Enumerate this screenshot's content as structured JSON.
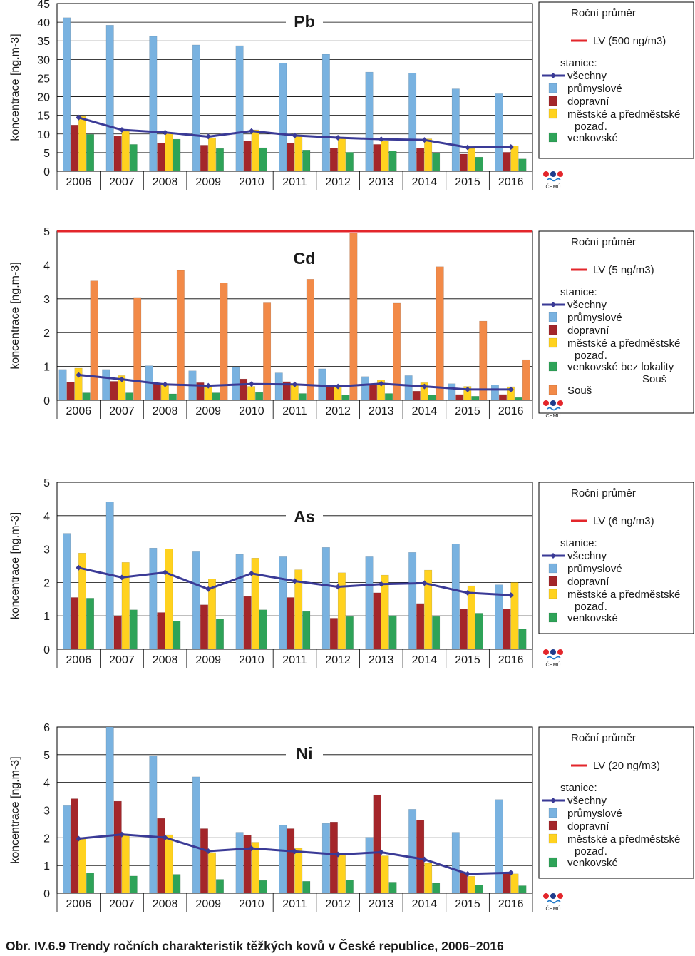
{
  "caption": "Obr. IV.6.9  Trendy ročních charakteristik těžkých kovů v České republice, 2006–2016",
  "logo_text": "ČHMÚ",
  "colors": {
    "all": "#3a3a96",
    "industrial": "#79b2e0",
    "traffic": "#a4262a",
    "urban": "#ffd21f",
    "rural": "#2ea358",
    "sous": "#f28a48",
    "limit": "#e3262b",
    "grid": "#000000"
  },
  "chart_data": [
    {
      "type": "bar",
      "title": "Pb",
      "ylabel": "koncentrace [ng.m-3]",
      "ylim": [
        0,
        45
      ],
      "yticks": [
        "0",
        "5",
        "10",
        "15",
        "20",
        "25",
        "30",
        "35",
        "40",
        "45"
      ],
      "categories": [
        "2006",
        "2007",
        "2008",
        "2009",
        "2010",
        "2011",
        "2012",
        "2013",
        "2014",
        "2015",
        "2016"
      ],
      "legend": {
        "title": "Roční průměr",
        "limit_label": "LV (500 ng/m3)",
        "stations_header": "stanice:",
        "entries": [
          "všechny",
          "průmyslové",
          "dopravní",
          "městské a předměstské",
          "pozaď.",
          "venkovské"
        ]
      },
      "limit_value": 500,
      "series": [
        {
          "name": "průmyslové",
          "key": "industrial",
          "values": [
            41.2,
            39.2,
            36.2,
            33.9,
            33.7,
            29.0,
            31.4,
            26.6,
            26.3,
            22.1,
            20.8
          ]
        },
        {
          "name": "dopravní",
          "key": "traffic",
          "values": [
            12.4,
            9.5,
            7.5,
            7.0,
            8.1,
            7.6,
            6.2,
            7.2,
            6.2,
            4.6,
            5.1
          ]
        },
        {
          "name": "městské a předměstské pozaď.",
          "key": "urban",
          "values": [
            14.7,
            10.7,
            10.2,
            9.0,
            11.1,
            9.3,
            9.0,
            8.1,
            8.7,
            6.1,
            6.8
          ]
        },
        {
          "name": "venkovské",
          "key": "rural",
          "values": [
            9.9,
            7.2,
            8.6,
            6.1,
            6.3,
            5.7,
            5.1,
            5.4,
            4.9,
            3.8,
            3.3
          ]
        }
      ],
      "line": {
        "name": "všechny",
        "values": [
          14.4,
          11.1,
          10.4,
          9.3,
          10.8,
          9.6,
          9.0,
          8.6,
          8.4,
          6.4,
          6.5
        ]
      }
    },
    {
      "type": "bar",
      "title": "Cd",
      "ylabel": "koncentrace [ng.m-3]",
      "ylim": [
        0,
        5
      ],
      "yticks": [
        "0",
        "1",
        "2",
        "3",
        "4",
        "5"
      ],
      "categories": [
        "2006",
        "2007",
        "2008",
        "2009",
        "2010",
        "2011",
        "2012",
        "2013",
        "2014",
        "2015",
        "2016"
      ],
      "legend": {
        "title": "Roční průměr",
        "limit_label": "LV (5 ng/m3)",
        "stations_header": "stanice:",
        "entries": [
          "všechny",
          "průmyslové",
          "dopravní",
          "městské a předměstské",
          "pozaď.",
          "venkovské bez lokality",
          "Souš",
          "Souš"
        ]
      },
      "limit_value": 5,
      "series": [
        {
          "name": "průmyslové",
          "key": "industrial",
          "values": [
            0.91,
            0.91,
            1.02,
            0.87,
            0.99,
            0.81,
            0.93,
            0.7,
            0.73,
            0.49,
            0.45
          ]
        },
        {
          "name": "dopravní",
          "key": "traffic",
          "values": [
            0.53,
            0.56,
            0.49,
            0.52,
            0.63,
            0.55,
            0.41,
            0.47,
            0.27,
            0.17,
            0.17
          ]
        },
        {
          "name": "městské a předměstské pozaď.",
          "key": "urban",
          "values": [
            0.95,
            0.73,
            0.47,
            0.46,
            0.41,
            0.47,
            0.46,
            0.6,
            0.52,
            0.41,
            0.4
          ]
        },
        {
          "name": "venkovské bez lokality Souš",
          "key": "rural",
          "values": [
            0.22,
            0.22,
            0.19,
            0.22,
            0.23,
            0.2,
            0.16,
            0.2,
            0.15,
            0.12,
            0.08
          ]
        },
        {
          "name": "Souš",
          "key": "sous",
          "values": [
            3.53,
            3.04,
            3.84,
            3.47,
            2.88,
            3.58,
            4.94,
            2.87,
            3.95,
            2.34,
            1.2
          ]
        }
      ],
      "line": {
        "name": "všechny",
        "values": [
          0.75,
          0.62,
          0.47,
          0.43,
          0.48,
          0.47,
          0.41,
          0.49,
          0.41,
          0.32,
          0.32
        ]
      }
    },
    {
      "type": "bar",
      "title": "As",
      "ylabel": "koncentrace [ng.m-3]",
      "ylim": [
        0,
        5
      ],
      "yticks": [
        "0",
        "1",
        "2",
        "3",
        "4",
        "5"
      ],
      "categories": [
        "2006",
        "2007",
        "2008",
        "2009",
        "2010",
        "2011",
        "2012",
        "2013",
        "2014",
        "2015",
        "2016"
      ],
      "legend": {
        "title": "Roční průměr",
        "limit_label": "LV (6 ng/m3)",
        "stations_header": "stanice:",
        "entries": [
          "všechny",
          "průmyslové",
          "dopravní",
          "městské a předměstské",
          "pozaď.",
          "venkovské"
        ]
      },
      "limit_value": 6,
      "series": [
        {
          "name": "průmyslové",
          "key": "industrial",
          "values": [
            3.47,
            4.41,
            3.03,
            2.92,
            2.84,
            2.77,
            3.05,
            2.77,
            2.9,
            3.15,
            1.93
          ]
        },
        {
          "name": "dopravní",
          "key": "traffic",
          "values": [
            1.55,
            1.0,
            1.1,
            1.33,
            1.58,
            1.55,
            0.93,
            1.69,
            1.37,
            1.21,
            1.21
          ]
        },
        {
          "name": "městské a předměstské pozaď.",
          "key": "urban",
          "values": [
            2.88,
            2.6,
            3.0,
            2.1,
            2.73,
            2.38,
            2.29,
            2.22,
            2.37,
            1.9,
            2.0
          ]
        },
        {
          "name": "venkovské",
          "key": "rural",
          "values": [
            1.53,
            1.18,
            0.85,
            0.9,
            1.18,
            1.13,
            0.98,
            1.01,
            0.98,
            1.08,
            0.6
          ]
        }
      ],
      "line": {
        "name": "všechny",
        "values": [
          2.44,
          2.15,
          2.3,
          1.8,
          2.27,
          2.04,
          1.87,
          1.95,
          1.98,
          1.69,
          1.62
        ]
      }
    },
    {
      "type": "bar",
      "title": "Ni",
      "ylabel": "koncentrace [ng.m-3]",
      "ylim": [
        0,
        6
      ],
      "yticks": [
        "0",
        "1",
        "2",
        "3",
        "4",
        "5",
        "6"
      ],
      "categories": [
        "2006",
        "2007",
        "2008",
        "2009",
        "2010",
        "2011",
        "2012",
        "2013",
        "2014",
        "2015",
        "2016"
      ],
      "legend": {
        "title": "Roční průměr",
        "limit_label": "LV (20 ng/m3)",
        "stations_header": "stanice:",
        "entries": [
          "všechny",
          "průmyslové",
          "dopravní",
          "městské a předměstské",
          "pozaď.",
          "venkovské"
        ]
      },
      "limit_value": 20,
      "series": [
        {
          "name": "průmyslové",
          "key": "industrial",
          "values": [
            3.16,
            6.0,
            4.95,
            4.2,
            2.2,
            2.45,
            2.52,
            2.02,
            3.03,
            2.2,
            3.38
          ]
        },
        {
          "name": "dopravní",
          "key": "traffic",
          "values": [
            3.41,
            3.32,
            2.7,
            2.33,
            2.09,
            2.33,
            2.57,
            3.55,
            2.64,
            0.72,
            0.72
          ]
        },
        {
          "name": "městské a předměstské pozaď.",
          "key": "urban",
          "values": [
            2.0,
            2.09,
            2.11,
            1.47,
            1.84,
            1.62,
            1.41,
            1.35,
            1.08,
            0.61,
            0.7
          ]
        },
        {
          "name": "venkovské",
          "key": "rural",
          "values": [
            0.73,
            0.62,
            0.68,
            0.5,
            0.46,
            0.43,
            0.48,
            0.4,
            0.36,
            0.3,
            0.27
          ]
        }
      ],
      "line": {
        "name": "všechny",
        "values": [
          1.97,
          2.12,
          2.01,
          1.52,
          1.62,
          1.51,
          1.4,
          1.48,
          1.22,
          0.7,
          0.74
        ]
      }
    }
  ]
}
